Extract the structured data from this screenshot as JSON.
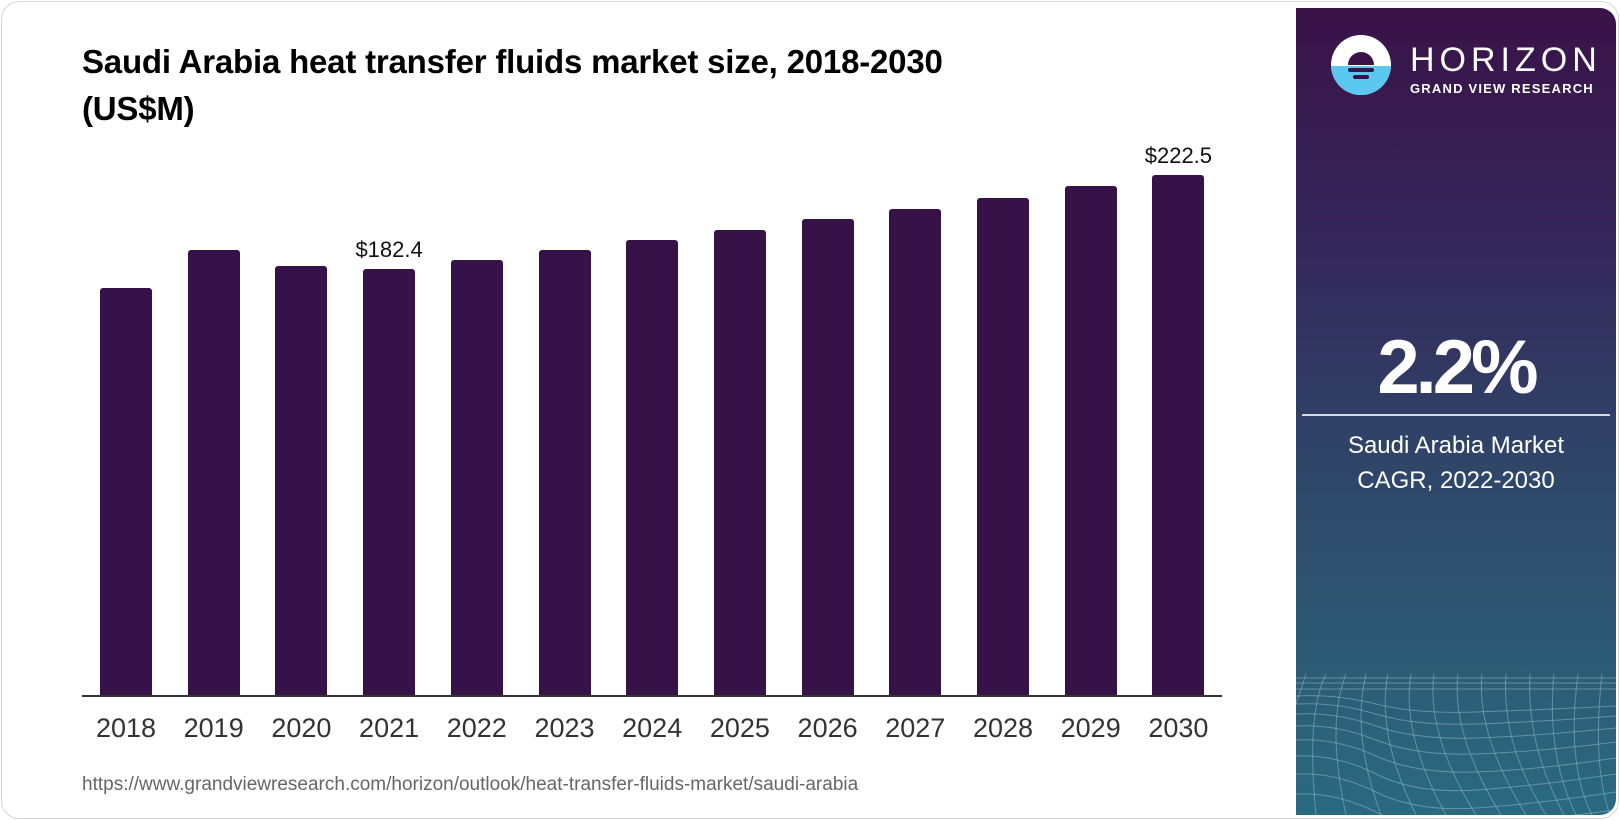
{
  "header": {
    "title_line1": "Saudi Arabia heat transfer fluids market size, 2018-2030",
    "title_line2": "(US$M)"
  },
  "chart_data": {
    "type": "bar",
    "title": "Saudi Arabia heat transfer fluids market size, 2018-2030 (US$M)",
    "xlabel": "",
    "ylabel": "US$M",
    "categories": [
      "2018",
      "2019",
      "2020",
      "2021",
      "2022",
      "2023",
      "2024",
      "2025",
      "2026",
      "2027",
      "2028",
      "2029",
      "2030"
    ],
    "values": [
      174.3,
      190.5,
      183.7,
      182.4,
      186.3,
      190.5,
      194.8,
      199.1,
      203.8,
      208.0,
      212.7,
      217.9,
      222.5
    ],
    "data_labels": {
      "2021": "$182.4",
      "2030": "$222.5"
    },
    "ylim": [
      0,
      240
    ],
    "grid": false,
    "legend": null,
    "bar_color": "#371248"
  },
  "labels": {
    "bar_2021": "$182.4",
    "bar_2030": "$222.5"
  },
  "footer": {
    "source_url": "https://www.grandviewresearch.com/horizon/outlook/heat-transfer-fluids-market/saudi-arabia"
  },
  "sidebar": {
    "brand": "HORIZON",
    "brand_sub": "GRAND VIEW RESEARCH",
    "cagr_value": "2.2%",
    "cagr_desc_line1": "Saudi Arabia Market",
    "cagr_desc_line2": "CAGR, 2022-2030",
    "colors": {
      "gradient_top": "#3a1248",
      "gradient_bottom": "#2a6a80",
      "logo_water": "#5bc8ef"
    }
  }
}
